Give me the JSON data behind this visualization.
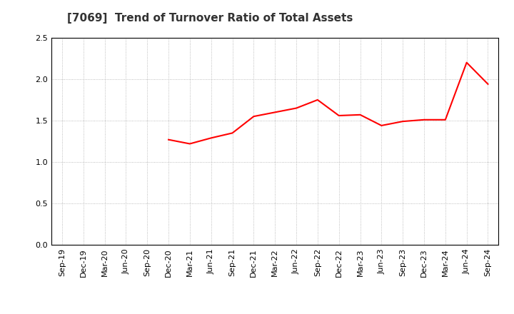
{
  "title": "[7069]  Trend of Turnover Ratio of Total Assets",
  "x_labels": [
    "Sep-19",
    "Dec-19",
    "Mar-20",
    "Jun-20",
    "Sep-20",
    "Dec-20",
    "Mar-21",
    "Jun-21",
    "Sep-21",
    "Dec-21",
    "Mar-22",
    "Jun-22",
    "Sep-22",
    "Dec-22",
    "Mar-23",
    "Jun-23",
    "Sep-23",
    "Dec-23",
    "Mar-24",
    "Jun-24",
    "Sep-24"
  ],
  "data_x_indices": [
    5,
    6,
    7,
    8,
    9,
    10,
    11,
    12,
    13,
    14,
    15,
    16,
    17,
    18,
    19,
    20
  ],
  "data_values": [
    1.27,
    1.22,
    1.29,
    1.35,
    1.55,
    1.6,
    1.65,
    1.75,
    1.56,
    1.57,
    1.44,
    1.49,
    1.51,
    1.51,
    2.2,
    1.94
  ],
  "line_color": "#ff0000",
  "line_width": 1.5,
  "ylim": [
    0.0,
    2.5
  ],
  "yticks": [
    0.0,
    0.5,
    1.0,
    1.5,
    2.0,
    2.5
  ],
  "grid_color": "#aaaaaa",
  "bg_color": "#ffffff",
  "title_fontsize": 11,
  "tick_fontsize": 8
}
